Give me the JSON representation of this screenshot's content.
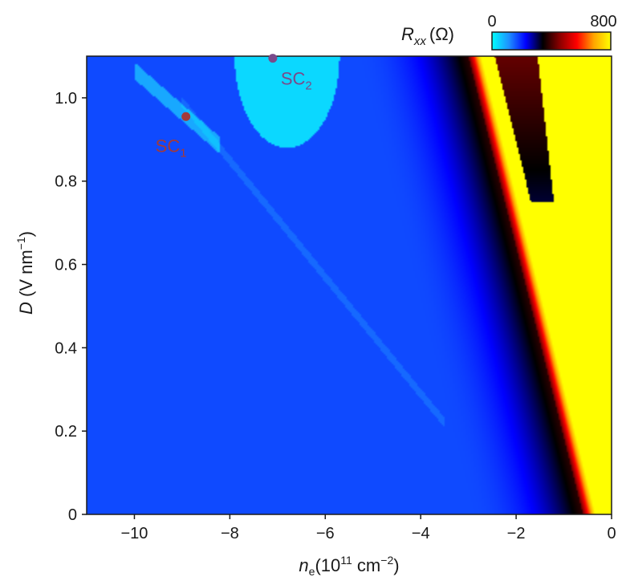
{
  "chart_data": {
    "type": "heatmap",
    "x_label_symbol": "n",
    "x_label_subscript": "e",
    "x_label_unit_prefix": "(10",
    "x_label_unit_exp1": "11",
    "x_label_unit_mid": " cm",
    "x_label_unit_exp2": "−2",
    "x_label_unit_suffix": ")",
    "y_label_symbol": "D",
    "y_label_unit_prefix": " (V nm",
    "y_label_unit_exp": "−1",
    "y_label_unit_suffix": ")",
    "xlim": [
      -11,
      0
    ],
    "ylim": [
      0,
      1.1
    ],
    "x_ticks": [
      {
        "value": -10,
        "label": "−10"
      },
      {
        "value": -8,
        "label": "−8"
      },
      {
        "value": -6,
        "label": "−6"
      },
      {
        "value": -4,
        "label": "−4"
      },
      {
        "value": -2,
        "label": "−2"
      },
      {
        "value": 0,
        "label": "0"
      }
    ],
    "y_ticks": [
      {
        "value": 0,
        "label": "0"
      },
      {
        "value": 0.2,
        "label": "0.2"
      },
      {
        "value": 0.4,
        "label": "0.4"
      },
      {
        "value": 0.6,
        "label": "0.6"
      },
      {
        "value": 0.8,
        "label": "0.8"
      },
      {
        "value": 1.0,
        "label": "1.0"
      }
    ],
    "colorbar": {
      "quantity_symbol": "R",
      "quantity_subscript": "xx",
      "quantity_unit": "(Ω)",
      "min_label": "0",
      "max_label": "800",
      "min": 0,
      "max": 800,
      "stops": [
        "#00ffff",
        "#1e90ff",
        "#0000ff",
        "#000000",
        "#8b0000",
        "#ff0000",
        "#ffa500",
        "#ffff00"
      ]
    },
    "annotations": [
      {
        "name": "sc1",
        "label": "SC",
        "subscript": "1",
        "x": -8.92,
        "y": 0.955,
        "color": "#a33a3a"
      },
      {
        "name": "sc2",
        "label": "SC",
        "subscript": "2",
        "x": -7.1,
        "y": 1.095,
        "color": "#7a4a8a"
      }
    ],
    "features": {
      "background_value": 170,
      "cnp_line": {
        "x_at_ymax": -2.85,
        "x_at_ymin": -0.45
      },
      "high_r_boundary": {
        "x_at_ymax": -1.35,
        "x_at_ymin": -0.28
      },
      "sc2_dome_value": 40,
      "sc1_streak_value": 90
    }
  }
}
